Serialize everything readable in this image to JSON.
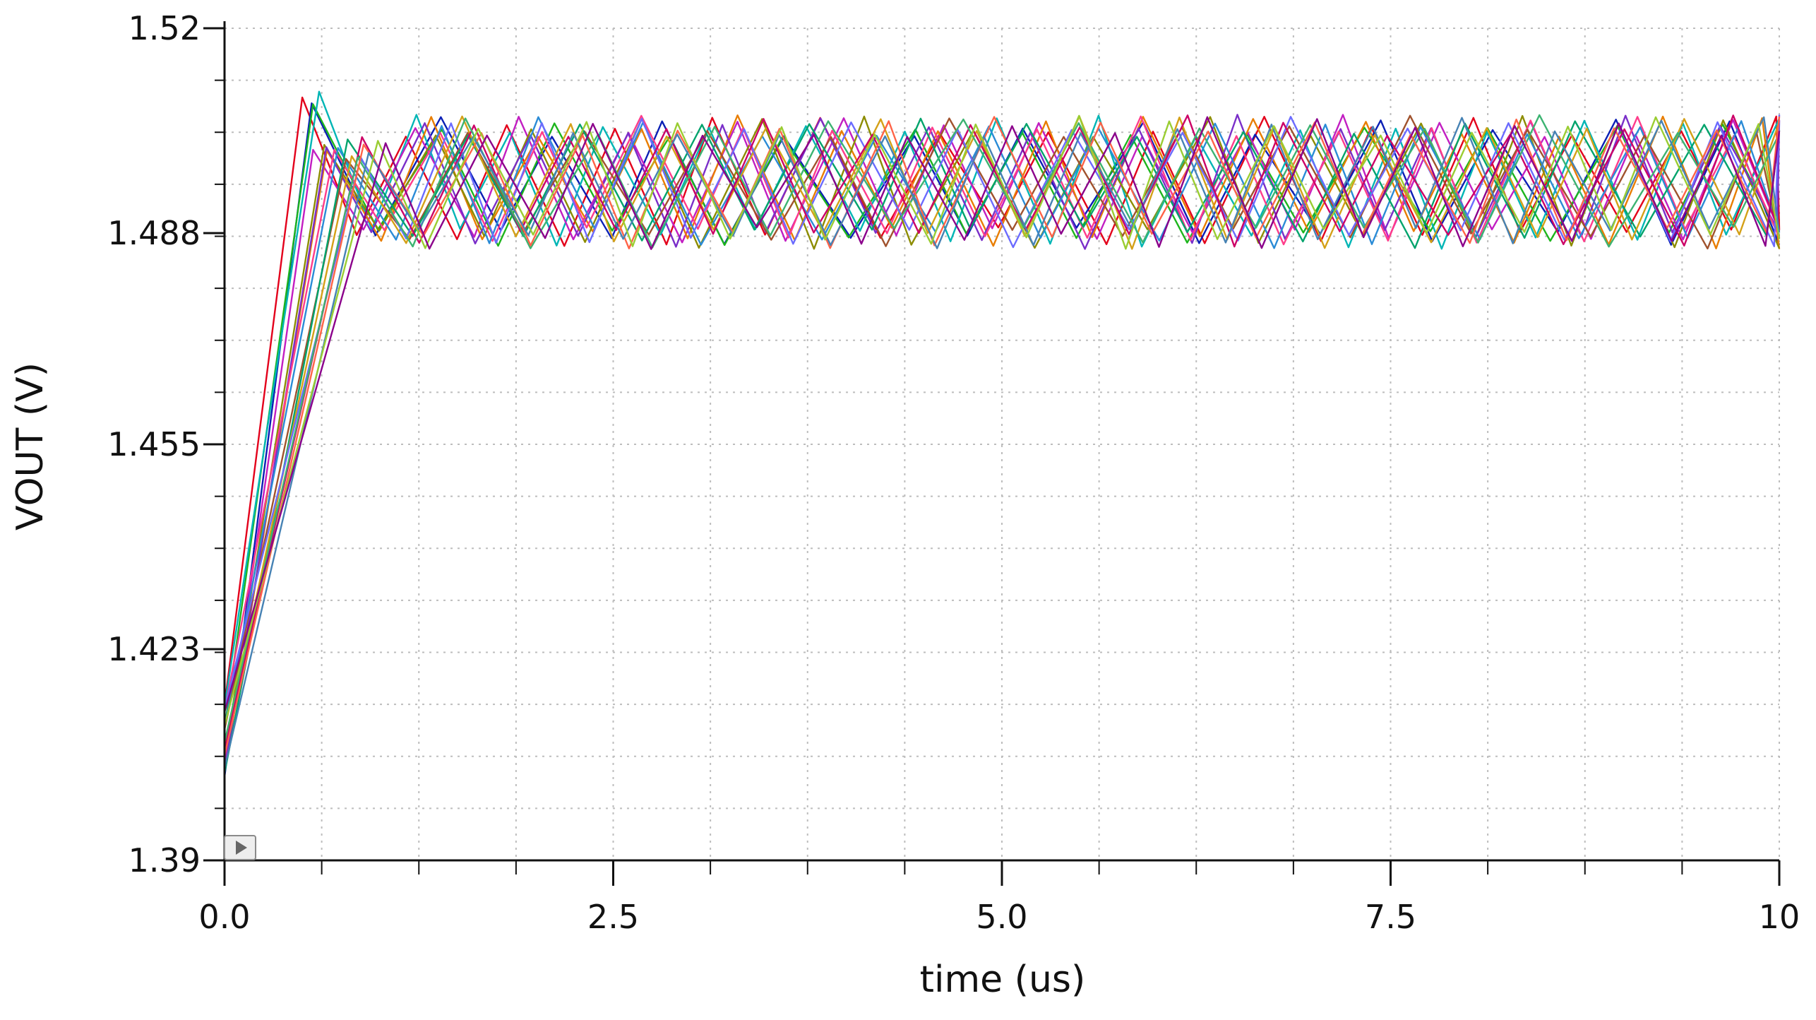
{
  "chart_data": {
    "type": "line",
    "title": "",
    "xlabel": "time (us)",
    "ylabel": "VOUT (V)",
    "xlim": [
      0,
      10
    ],
    "ylim": [
      1.39,
      1.52
    ],
    "x_ticks": [
      0.0,
      2.5,
      5.0,
      7.5,
      10
    ],
    "x_tick_labels": [
      "0.0",
      "2.5",
      "5.0",
      "7.5",
      "10"
    ],
    "y_ticks": [
      1.39,
      1.423,
      1.455,
      1.488,
      1.52
    ],
    "y_tick_labels": [
      "1.39",
      "1.423",
      "1.455",
      "1.488",
      "1.52"
    ],
    "grid": true,
    "legend": "none",
    "series_count": 20,
    "series_colors": [
      "#e3001b",
      "#0a1fb5",
      "#1db51d",
      "#00b5b5",
      "#c21ec2",
      "#e87d00",
      "#8c8c00",
      "#7a2ec9",
      "#ff3c8a",
      "#2a8bd6",
      "#a0522d",
      "#00a36c",
      "#d4a017",
      "#6b6bff",
      "#cc0066",
      "#3cb371",
      "#ff6347",
      "#4682b4",
      "#9acd32",
      "#8b008b"
    ],
    "startup": {
      "initial_value_range": [
        1.402,
        1.415
      ],
      "rise_end_time_range": [
        0.5,
        1.0
      ],
      "first_peak_max": 1.5105
    },
    "steady_state": {
      "min": 1.4845,
      "max": 1.5075,
      "ripple_period_range_us": [
        0.62,
        0.78
      ]
    }
  }
}
